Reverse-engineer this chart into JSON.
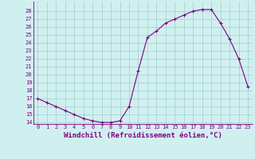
{
  "x": [
    0,
    1,
    2,
    3,
    4,
    5,
    6,
    7,
    8,
    9,
    10,
    11,
    12,
    13,
    14,
    15,
    16,
    17,
    18,
    19,
    20,
    21,
    22,
    23
  ],
  "y": [
    17,
    16.5,
    16,
    15.5,
    15,
    14.5,
    14.2,
    14,
    14,
    14.2,
    16,
    20.5,
    24.7,
    25.5,
    26.5,
    27,
    27.5,
    28,
    28.2,
    28.2,
    26.5,
    24.5,
    22,
    18.5
  ],
  "xlabel": "Windchill (Refroidissement éolien,°C)",
  "line_color": "#800080",
  "marker": "+",
  "bg_color": "#d0f0f0",
  "grid_color": "#a0cccc",
  "ylim": [
    14,
    29
  ],
  "xlim": [
    -0.5,
    23.5
  ],
  "yticks": [
    14,
    15,
    16,
    17,
    18,
    19,
    20,
    21,
    22,
    23,
    24,
    25,
    26,
    27,
    28
  ],
  "xticks": [
    0,
    1,
    2,
    3,
    4,
    5,
    6,
    7,
    8,
    9,
    10,
    11,
    12,
    13,
    14,
    15,
    16,
    17,
    18,
    19,
    20,
    21,
    22,
    23
  ],
  "tick_label_size": 5,
  "xlabel_size": 6.5,
  "marker_size": 3,
  "linewidth": 0.8
}
